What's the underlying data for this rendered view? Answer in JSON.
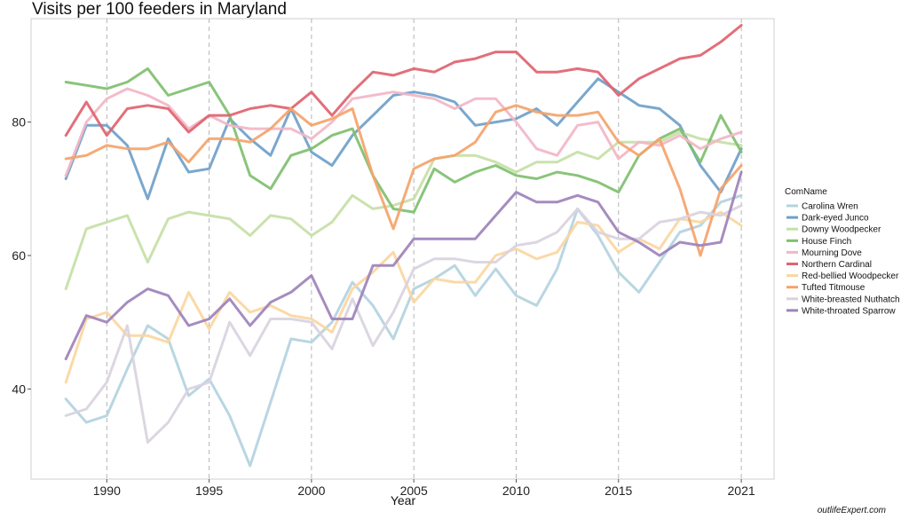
{
  "chart_data": {
    "type": "line",
    "title": "Visits per 100 feeders in Maryland",
    "xlabel": "Year",
    "ylabel": "",
    "xlim": [
      1986.3,
      2022.6
    ],
    "ylim": [
      26.5,
      95.5
    ],
    "xticks": [
      1990,
      1995,
      2000,
      2005,
      2010,
      2015,
      2021
    ],
    "yticks": [
      40,
      60,
      80
    ],
    "grid": "vertical-dashed",
    "legend_position": "right",
    "legend_title": "ComName",
    "x": [
      1988,
      1989,
      1990,
      1991,
      1992,
      1993,
      1994,
      1995,
      1996,
      1997,
      1998,
      1999,
      2000,
      2001,
      2002,
      2003,
      2004,
      2005,
      2006,
      2007,
      2008,
      2009,
      2010,
      2011,
      2012,
      2013,
      2014,
      2015,
      2016,
      2017,
      2018,
      2019,
      2020,
      2021
    ],
    "series": [
      {
        "name": "Carolina Wren",
        "color": "#b3d3e0",
        "values": [
          38.5,
          35,
          36,
          43,
          49.5,
          47.5,
          39,
          41.5,
          36,
          28.5,
          38,
          47.5,
          47,
          50,
          56,
          52.5,
          47.5,
          55,
          56.5,
          58.5,
          54,
          58,
          54,
          52.5,
          58,
          67,
          63,
          57.5,
          54.5,
          59,
          63.5,
          64.5,
          68,
          69
        ]
      },
      {
        "name": "Dark-eyed Junco",
        "color": "#6f9fc9",
        "values": [
          71.5,
          79.5,
          79.5,
          76.5,
          68.5,
          77.5,
          72.5,
          73,
          80.5,
          77.5,
          75,
          82,
          75.5,
          73.5,
          78,
          81,
          84,
          84.5,
          84,
          83,
          79.5,
          80,
          80.5,
          82,
          79.5,
          83,
          86.5,
          84.5,
          82.5,
          82,
          79.5,
          73.5,
          69.5,
          76
        ]
      },
      {
        "name": "Downy Woodpecker",
        "color": "#c5e0a6",
        "values": [
          55,
          64,
          65,
          66,
          59,
          65.5,
          66.5,
          66,
          65.5,
          63,
          66,
          65.5,
          63,
          65,
          69,
          67,
          67.5,
          68.5,
          74.5,
          75,
          75,
          74,
          72.5,
          74,
          74,
          75.5,
          74.5,
          77,
          77,
          77,
          78.5,
          77.5,
          77,
          76.5
        ]
      },
      {
        "name": "House Finch",
        "color": "#7fbf6f",
        "values": [
          86,
          85.5,
          85,
          86,
          88,
          84,
          85,
          86,
          81,
          72,
          70,
          75,
          76,
          78,
          79,
          72,
          67,
          66.5,
          73,
          71,
          72.5,
          73.5,
          72,
          71.5,
          72.5,
          72,
          71,
          69.5,
          75,
          77.5,
          79,
          74,
          81,
          75.5
        ]
      },
      {
        "name": "Mourning Dove",
        "color": "#f2b6c6",
        "values": [
          72,
          80,
          83.5,
          85,
          84,
          82.5,
          79,
          81,
          79.5,
          79,
          79,
          79,
          77.5,
          80,
          83.5,
          84,
          84.5,
          84,
          83.5,
          82,
          83.5,
          83.5,
          80,
          76,
          75,
          79.5,
          80,
          74.5,
          77,
          76.5,
          78,
          76,
          77.5,
          78.5
        ]
      },
      {
        "name": "Northern Cardinal",
        "color": "#e0636f",
        "values": [
          78,
          83,
          78,
          82,
          82.5,
          82,
          78.5,
          81,
          81,
          82,
          82.5,
          82,
          84.5,
          81,
          84.5,
          87.5,
          87,
          88,
          87.5,
          89,
          89.5,
          90.5,
          90.5,
          87.5,
          87.5,
          88,
          87.5,
          84,
          86.5,
          88,
          89.5,
          90,
          92,
          94.5
        ]
      },
      {
        "name": "Red-bellied Woodpecker",
        "color": "#fbd6a0",
        "values": [
          41,
          50.5,
          51.5,
          48,
          48,
          47,
          54.5,
          49,
          54.5,
          51.5,
          52.5,
          51,
          50.5,
          48.5,
          55,
          57.5,
          60.5,
          53,
          56.5,
          56,
          56,
          60,
          61,
          59.5,
          60.5,
          65,
          64.5,
          60.5,
          62.5,
          61,
          65.5,
          65,
          66.5,
          64.5
        ]
      },
      {
        "name": "Tufted Titmouse",
        "color": "#f5a36a",
        "values": [
          74.5,
          75,
          76.5,
          76,
          76,
          77,
          74,
          77.5,
          77.5,
          77,
          79,
          82,
          79.5,
          80.5,
          82,
          72,
          64,
          73,
          74.5,
          75,
          77,
          81.5,
          82.5,
          81.5,
          81,
          81,
          81.5,
          77,
          75,
          77.5,
          70,
          60,
          70,
          73.5
        ]
      },
      {
        "name": "White-breasted Nuthatch",
        "color": "#d9d2df",
        "values": [
          36,
          37,
          41,
          49.5,
          32,
          35,
          40,
          41,
          50,
          45,
          50.5,
          50.5,
          50,
          46,
          53.5,
          46.5,
          51.5,
          58,
          59.5,
          59.5,
          59,
          59,
          61.5,
          62,
          63.5,
          67,
          63.5,
          62.5,
          62.5,
          65,
          65.5,
          66.5,
          66,
          67.5
        ]
      },
      {
        "name": "White-throated Sparrow",
        "color": "#9e82bb",
        "values": [
          44.5,
          51,
          50,
          53,
          55,
          54,
          49.5,
          50.5,
          53.5,
          49.5,
          53,
          54.5,
          57,
          50.5,
          50.5,
          58.5,
          58.5,
          62.5,
          62.5,
          62.5,
          62.5,
          66,
          69.5,
          68,
          68,
          69,
          68,
          63.5,
          62,
          60,
          62,
          61.5,
          62,
          72.5
        ]
      }
    ]
  },
  "watermark": "outlifeExpert.com"
}
